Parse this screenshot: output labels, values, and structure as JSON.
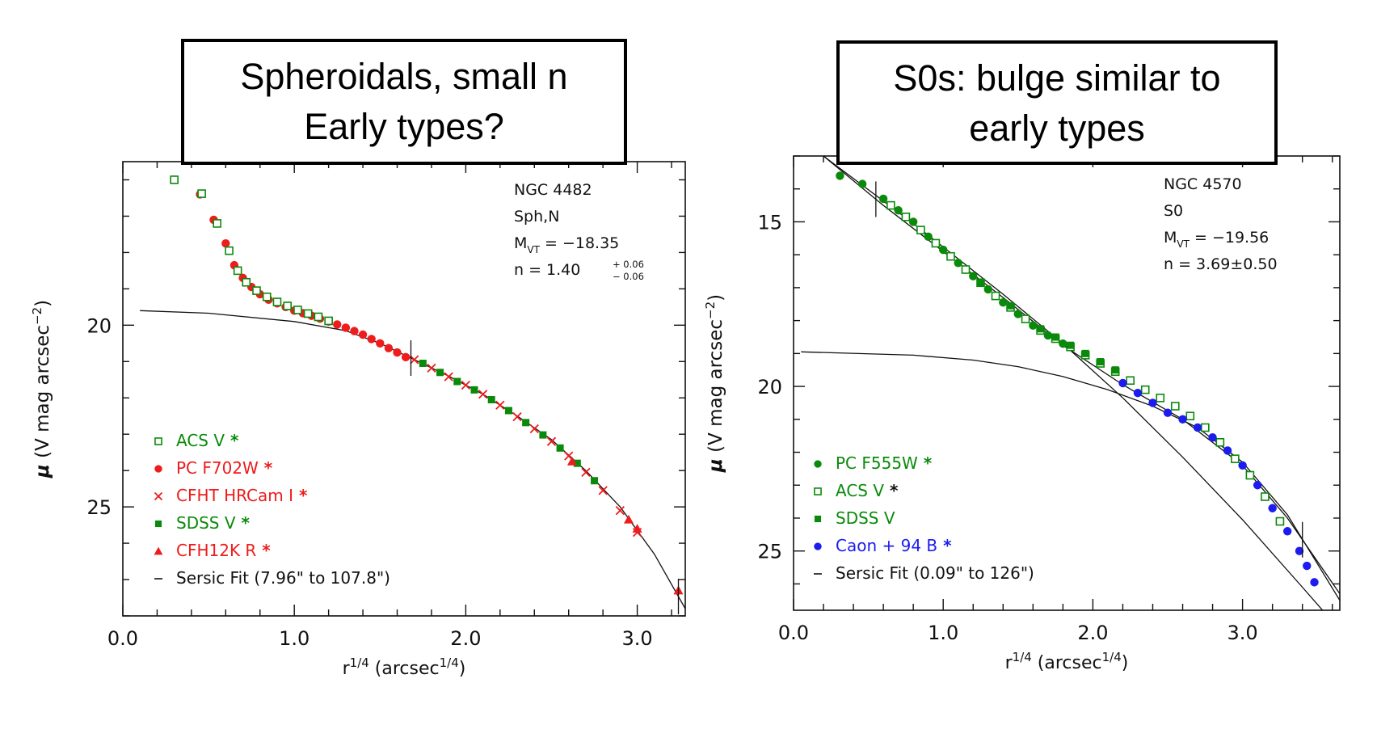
{
  "colors": {
    "green": "#0a8a0a",
    "red": "#ee1c1c",
    "blue": "#1c1cee",
    "black": "#000000",
    "ink": "#111111"
  },
  "chart_data": [
    {
      "type": "scatter",
      "banner": [
        "Spheroidals, small n",
        "Early types?"
      ],
      "annotation": {
        "galaxy": "NGC 4482",
        "morph": "Sph,N",
        "mag": {
          "M": "M",
          "sub": "VT",
          "value": "= −18.35"
        },
        "n": {
          "label": "n",
          "value": "=  1.40",
          "sup": "+ 0.06",
          "sub": "− 0.06"
        }
      },
      "xlabel": {
        "base": "r",
        "sup1": "1/4",
        "rest": "  (arcsec",
        "sup2": "1/4",
        "close": ")"
      },
      "ylabel": {
        "greek": "μ",
        "rest": " (V mag arcsec",
        "sup": "−2",
        "close": ")"
      },
      "xlim": [
        0,
        3.28
      ],
      "ylim": [
        28.0,
        15.5
      ],
      "xticks": [
        "0.0",
        "1.0",
        "2.0",
        "3.0"
      ],
      "xtick_values": [
        0,
        1,
        2,
        3
      ],
      "yticks": [
        "20",
        "25"
      ],
      "ytick_values": [
        20,
        25
      ],
      "grid": false,
      "legend_position": "lower-left",
      "legend": [
        {
          "marker": "open-square",
          "text": "ACS V",
          "star": "*",
          "color": "#0a8a0a",
          "star_color": "#0a8a0a"
        },
        {
          "marker": "circle",
          "text": "PC F702W",
          "star": "*",
          "color": "#ee1c1c",
          "star_color": "#ee1c1c"
        },
        {
          "marker": "cross",
          "text": "CFHT HRCam I",
          "star": "*",
          "color": "#ee1c1c",
          "star_color": "#ee1c1c"
        },
        {
          "marker": "filled-square",
          "text": "SDSS V",
          "star": "*",
          "color": "#0a8a0a",
          "star_color": "#0a8a0a"
        },
        {
          "marker": "triangle",
          "text": "CFH12K R",
          "star": "*",
          "color": "#ee1c1c",
          "star_color": "#ee1c1c"
        },
        {
          "marker": "line",
          "text": "Sersic Fit (7.96\" to 107.8\")",
          "star": "",
          "color": "#111111",
          "star_color": "#111111"
        }
      ],
      "fit_markers": [
        1.68,
        3.24
      ],
      "series": [
        {
          "marker": "circle",
          "color": "#ee1c1c",
          "x": [
            0.3,
            0.45,
            0.53,
            0.6,
            0.65,
            0.7,
            0.75,
            0.8,
            0.85,
            0.9,
            0.95,
            1.0,
            1.05,
            1.1,
            1.15,
            1.2,
            1.25,
            1.3,
            1.35,
            1.4,
            1.45,
            1.5,
            1.55,
            1.6,
            1.65
          ],
          "y": [
            16.0,
            16.4,
            17.1,
            17.75,
            18.35,
            18.7,
            18.95,
            19.15,
            19.3,
            19.4,
            19.5,
            19.6,
            19.67,
            19.74,
            19.82,
            19.9,
            19.98,
            20.07,
            20.16,
            20.26,
            20.38,
            20.5,
            20.63,
            20.75,
            20.88
          ]
        },
        {
          "marker": "open-square",
          "color": "#0a8a0a",
          "x": [
            0.3,
            0.46,
            0.55,
            0.62,
            0.67,
            0.72,
            0.78,
            0.84,
            0.9,
            0.96,
            1.02,
            1.08,
            1.14,
            1.2
          ],
          "y": [
            16.0,
            16.38,
            17.2,
            17.95,
            18.5,
            18.82,
            19.05,
            19.22,
            19.36,
            19.47,
            19.58,
            19.68,
            19.77,
            19.88
          ]
        },
        {
          "marker": "cross",
          "color": "#ee1c1c",
          "x": [
            1.7,
            1.8,
            1.9,
            2.0,
            2.1,
            2.2,
            2.3,
            2.4,
            2.5,
            2.6,
            2.7,
            2.8,
            2.9,
            3.0
          ],
          "y": [
            20.95,
            21.18,
            21.42,
            21.65,
            21.9,
            22.2,
            22.52,
            22.85,
            23.2,
            23.6,
            24.05,
            24.55,
            25.1,
            25.7
          ]
        },
        {
          "marker": "filled-square",
          "color": "#0a8a0a",
          "x": [
            1.75,
            1.85,
            1.95,
            2.05,
            2.15,
            2.25,
            2.35,
            2.45,
            2.55,
            2.65,
            2.75
          ],
          "y": [
            21.05,
            21.3,
            21.55,
            21.78,
            22.05,
            22.35,
            22.68,
            23.02,
            23.38,
            23.8,
            24.28
          ]
        },
        {
          "marker": "triangle",
          "color": "#ee1c1c",
          "x": [
            2.62,
            2.95,
            3.0,
            3.24
          ],
          "y": [
            23.75,
            25.35,
            25.6,
            27.3
          ]
        }
      ],
      "fit_lines": [
        {
          "x": [
            0.1,
            0.5,
            1.0,
            1.3,
            1.5,
            1.7,
            1.9,
            2.1,
            2.3,
            2.5,
            2.7,
            2.9,
            3.1,
            3.28
          ],
          "y": [
            19.6,
            19.67,
            19.9,
            20.15,
            20.5,
            20.95,
            21.4,
            21.9,
            22.5,
            23.15,
            24.0,
            25.0,
            26.3,
            27.8
          ]
        }
      ]
    },
    {
      "type": "scatter",
      "banner": [
        "S0s: bulge similar to",
        "early types"
      ],
      "annotation": {
        "galaxy": "NGC 4570",
        "morph": "S0",
        "mag": {
          "M": "M",
          "sub": "VT",
          "value": "= −19.56"
        },
        "n": {
          "label": "n",
          "value": "=  3.69±0.50",
          "sup": "",
          "sub": ""
        }
      },
      "xlabel": {
        "base": "r",
        "sup1": "1/4",
        "rest": "  (arcsec",
        "sup2": "1/4",
        "close": ")"
      },
      "ylabel": {
        "greek": "μ",
        "rest": " (V mag arcsec",
        "sup": "−2",
        "close": ")"
      },
      "xlim": [
        0,
        3.65
      ],
      "ylim": [
        26.8,
        13.0
      ],
      "xticks": [
        "0.0",
        "1.0",
        "2.0",
        "3.0"
      ],
      "xtick_values": [
        0,
        1,
        2,
        3
      ],
      "yticks": [
        "15",
        "20",
        "25"
      ],
      "ytick_values": [
        15,
        20,
        25
      ],
      "grid": false,
      "legend_position": "lower-left",
      "legend": [
        {
          "marker": "circle",
          "text": "PC F555W",
          "star": "*",
          "color": "#0a8a0a",
          "star_color": "#0a8a0a"
        },
        {
          "marker": "open-square",
          "text": "ACS V",
          "star": "*",
          "color": "#0a8a0a",
          "star_color": "#111111"
        },
        {
          "marker": "filled-square",
          "text": "SDSS V",
          "star": "",
          "color": "#0a8a0a",
          "star_color": "#0a8a0a"
        },
        {
          "marker": "circle",
          "text": "Caon + 94 B",
          "star": "*",
          "color": "#1c1cee",
          "star_color": "#1c1cee"
        },
        {
          "marker": "line",
          "text": "Sersic Fit (0.09\" to 126\")",
          "star": "",
          "color": "#111111",
          "star_color": "#111111"
        }
      ],
      "fit_markers": [
        0.55,
        3.4
      ],
      "series": [
        {
          "marker": "circle",
          "color": "#0a8a0a",
          "x": [
            0.31,
            0.46,
            0.6,
            0.7,
            0.8,
            0.9,
            1.0,
            1.1,
            1.2,
            1.3,
            1.4,
            1.5,
            1.6,
            1.7,
            1.8
          ],
          "y": [
            13.6,
            13.85,
            14.3,
            14.65,
            15.0,
            15.45,
            15.85,
            16.25,
            16.65,
            17.05,
            17.45,
            17.8,
            18.15,
            18.45,
            18.7
          ]
        },
        {
          "marker": "open-square",
          "color": "#0a8a0a",
          "x": [
            0.65,
            0.75,
            0.85,
            0.95,
            1.05,
            1.15,
            1.25,
            1.35,
            1.45,
            1.55,
            1.65,
            1.75,
            1.85,
            1.95,
            2.05,
            2.15,
            2.25,
            2.35,
            2.45,
            2.55,
            2.65,
            2.75,
            2.85,
            2.95,
            3.05,
            3.15,
            3.25
          ],
          "y": [
            14.5,
            14.85,
            15.25,
            15.65,
            16.05,
            16.45,
            16.85,
            17.25,
            17.6,
            17.95,
            18.3,
            18.55,
            18.8,
            19.05,
            19.3,
            19.55,
            19.82,
            20.1,
            20.35,
            20.6,
            20.9,
            21.25,
            21.7,
            22.2,
            22.7,
            23.35,
            24.1
          ]
        },
        {
          "marker": "filled-square",
          "color": "#0a8a0a",
          "x": [
            1.25,
            1.45,
            1.65,
            1.75,
            1.85,
            1.95,
            2.05,
            2.15
          ],
          "y": [
            16.85,
            17.55,
            18.25,
            18.5,
            18.75,
            19.0,
            19.25,
            19.5
          ]
        },
        {
          "marker": "circle",
          "color": "#1c1cee",
          "x": [
            2.2,
            2.3,
            2.4,
            2.5,
            2.6,
            2.7,
            2.8,
            2.9,
            3.0,
            3.1,
            3.2,
            3.3,
            3.38,
            3.43,
            3.48
          ],
          "y": [
            19.9,
            20.2,
            20.5,
            20.8,
            21.0,
            21.25,
            21.55,
            21.95,
            22.4,
            23.0,
            23.7,
            24.4,
            25.0,
            25.45,
            25.95
          ]
        }
      ],
      "fit_lines": [
        {
          "x": [
            0.2,
            0.8,
            1.4,
            1.8,
            2.2,
            2.6,
            3.0,
            3.4,
            3.65
          ],
          "y": [
            13.0,
            15.05,
            17.2,
            18.7,
            20.35,
            22.15,
            24.05,
            26.1,
            27.4
          ]
        },
        {
          "x": [
            0.05,
            0.8,
            1.2,
            1.5,
            1.8,
            2.1,
            2.4,
            2.7,
            3.0,
            3.3,
            3.65
          ],
          "y": [
            18.95,
            19.05,
            19.2,
            19.4,
            19.7,
            20.1,
            20.6,
            21.25,
            22.3,
            23.9,
            26.5
          ]
        },
        {
          "x": [
            0.2,
            0.6,
            1.0,
            1.4,
            1.8,
            2.2,
            2.6,
            3.0,
            3.3,
            3.65
          ],
          "y": [
            13.0,
            14.5,
            15.9,
            17.3,
            18.75,
            19.95,
            21.0,
            22.4,
            24.0,
            26.3
          ]
        }
      ]
    }
  ]
}
